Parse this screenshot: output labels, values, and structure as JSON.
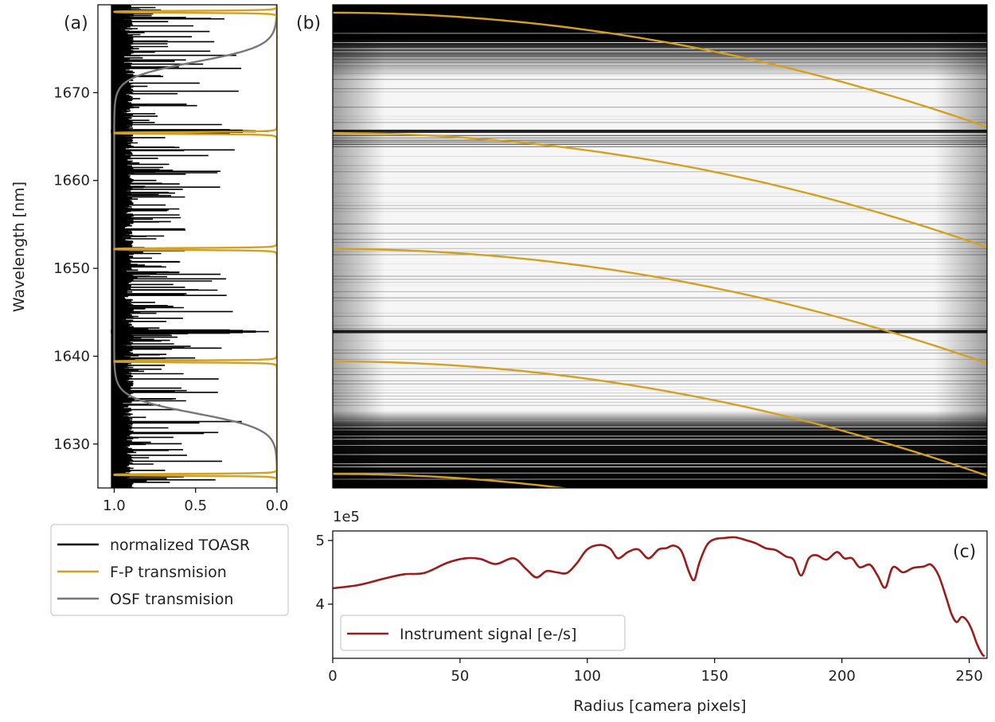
{
  "colors": {
    "toasr": "#000000",
    "fp": "#d4a020",
    "osf": "#777777",
    "signal": "#9b1c1c",
    "axis": "#000000"
  },
  "chart_data": [
    {
      "id": "a",
      "panel_label": "(a)",
      "type": "line",
      "orientation": "horizontal-x-values-vertical-wavelength",
      "ylabel": "Wavelength [nm]",
      "xlabel": "",
      "xlim": [
        1.1,
        0.0
      ],
      "ylim": [
        1625,
        1680
      ],
      "xticks": [
        1.0,
        0.5,
        0.0
      ],
      "xtick_labels": [
        "1.0",
        "0.5",
        "0.0"
      ],
      "yticks": [
        1630,
        1640,
        1650,
        1660,
        1670
      ],
      "ytick_labels": [
        "1630",
        "1640",
        "1650",
        "1660",
        "1670"
      ],
      "fp_peaks_nm": [
        1626.5,
        1639.4,
        1652.2,
        1665.4,
        1679.2
      ],
      "osf_passband_nm": [
        1633.5,
        1673.5
      ],
      "strong_lines_nm": [
        1665.6,
        1642.8
      ],
      "series": [
        {
          "name": "normalized TOASR",
          "color_key": "toasr"
        },
        {
          "name": "F-P transmision",
          "color_key": "fp"
        },
        {
          "name": "OSF transmision",
          "color_key": "osf"
        }
      ]
    },
    {
      "id": "b",
      "panel_label": "(b)",
      "type": "heatmap",
      "description_free": true,
      "fp_ring_start_nm": [
        1679.1,
        1665.4,
        1652.2,
        1639.4,
        1626.6
      ]
    },
    {
      "id": "c",
      "panel_label": "(c)",
      "type": "line",
      "xlabel": "Radius [camera pixels]",
      "ylabel": "",
      "y_offset_label": "1e5",
      "xlim": [
        0,
        257
      ],
      "ylim": [
        3.15,
        5.15
      ],
      "xticks": [
        0,
        50,
        100,
        150,
        200,
        250
      ],
      "xtick_labels": [
        "0",
        "50",
        "100",
        "150",
        "200",
        "250"
      ],
      "yticks": [
        4,
        5
      ],
      "ytick_labels": [
        "4",
        "5"
      ],
      "legend": "lower-left",
      "series": [
        {
          "name": "Instrument signal [e-/s]",
          "color_key": "signal",
          "x": [
            0,
            10,
            20,
            28,
            36,
            45,
            52,
            58,
            64,
            71,
            76,
            80,
            84,
            88,
            92,
            96,
            100,
            105,
            109,
            112,
            116,
            120,
            124,
            128,
            131,
            134,
            137,
            140,
            142,
            144,
            147,
            150,
            154,
            158,
            162,
            166,
            170,
            174,
            178,
            181,
            184,
            187,
            190,
            194,
            198,
            201,
            204,
            207,
            211,
            214,
            217,
            220,
            224,
            228,
            232,
            235,
            238,
            241,
            243,
            245,
            247,
            249,
            251,
            253,
            255,
            256
          ],
          "y": [
            4.25,
            4.3,
            4.4,
            4.47,
            4.49,
            4.65,
            4.72,
            4.71,
            4.63,
            4.72,
            4.55,
            4.42,
            4.52,
            4.5,
            4.49,
            4.65,
            4.86,
            4.93,
            4.87,
            4.72,
            4.82,
            4.86,
            4.72,
            4.86,
            4.88,
            4.92,
            4.83,
            4.5,
            4.38,
            4.65,
            4.93,
            5.02,
            5.04,
            5.05,
            5.01,
            4.96,
            4.88,
            4.85,
            4.75,
            4.7,
            4.45,
            4.72,
            4.77,
            4.7,
            4.82,
            4.72,
            4.72,
            4.58,
            4.62,
            4.45,
            4.26,
            4.58,
            4.5,
            4.57,
            4.59,
            4.62,
            4.45,
            4.1,
            3.85,
            3.72,
            3.8,
            3.75,
            3.6,
            3.38,
            3.22,
            3.18
          ]
        }
      ]
    }
  ]
}
